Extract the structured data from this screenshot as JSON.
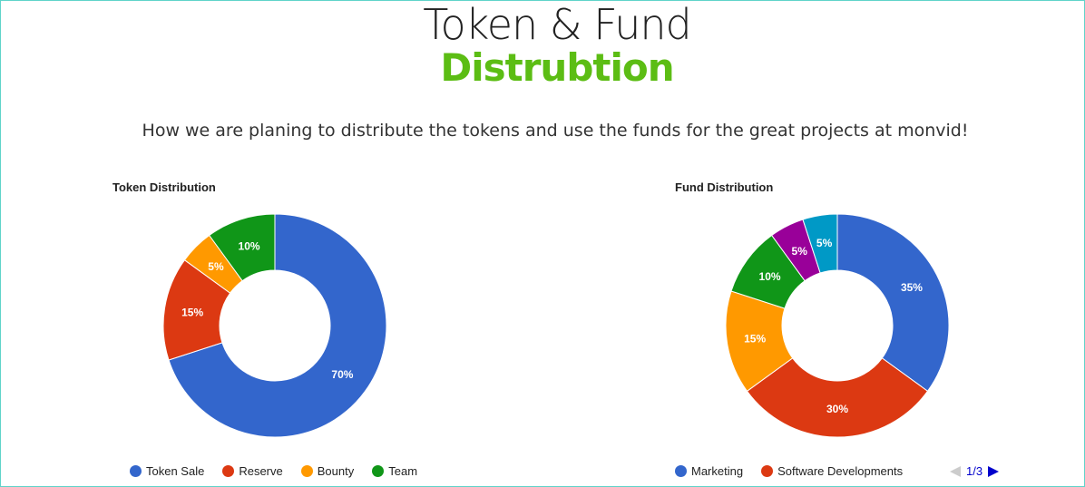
{
  "header": {
    "title_line1": "Token & Fund",
    "title_line2": "Distrubtion",
    "subtitle": "How we are planing to distribute the tokens and use the funds for the great projects at monvid!"
  },
  "chart_data": [
    {
      "type": "pie",
      "donut": true,
      "title": "Token Distribution",
      "legend_position": "bottom",
      "slices": [
        {
          "label": "Token Sale",
          "value": 70,
          "display": "70%",
          "color": "#3366cc"
        },
        {
          "label": "Reserve",
          "value": 15,
          "display": "15%",
          "color": "#dc3912"
        },
        {
          "label": "Bounty",
          "value": 5,
          "display": "5%",
          "color": "#ff9900"
        },
        {
          "label": "Team",
          "value": 10,
          "display": "10%",
          "color": "#109618"
        }
      ]
    },
    {
      "type": "pie",
      "donut": true,
      "title": "Fund Distribution",
      "legend_position": "bottom",
      "slices": [
        {
          "label": "Marketing",
          "value": 35,
          "display": "35%",
          "color": "#3366cc"
        },
        {
          "label": "Software Developments",
          "value": 30,
          "display": "30%",
          "color": "#dc3912"
        },
        {
          "label": "",
          "value": 15,
          "display": "15%",
          "color": "#ff9900"
        },
        {
          "label": "",
          "value": 10,
          "display": "10%",
          "color": "#109618"
        },
        {
          "label": "",
          "value": 5,
          "display": "5%",
          "color": "#990099"
        },
        {
          "label": "",
          "value": 5,
          "display": "5%",
          "color": "#0099c6"
        }
      ],
      "legend_visible_labels": [
        "Marketing",
        "Software Developments"
      ],
      "legend_pager": "1/3"
    }
  ]
}
